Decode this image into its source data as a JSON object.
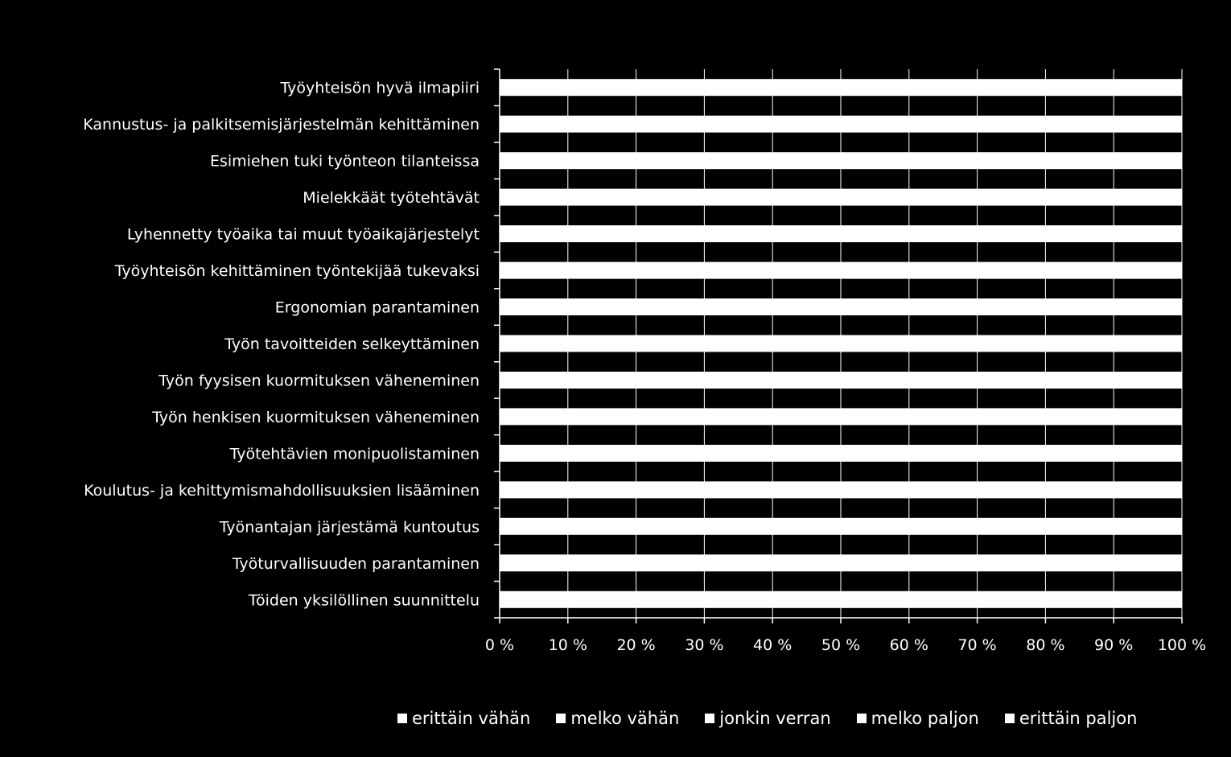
{
  "chart_data": {
    "type": "bar",
    "orientation": "horizontal",
    "stacked": "percent",
    "title": "",
    "xlabel": "",
    "ylabel": "",
    "xlim": [
      0,
      100
    ],
    "x_ticks": [
      "0 %",
      "10 %",
      "20 %",
      "30 %",
      "40 %",
      "50 %",
      "60 %",
      "70 %",
      "80 %",
      "90 %",
      "100 %"
    ],
    "grid": "vertical",
    "legend_position": "bottom",
    "colors": {
      "background": "#000000",
      "bars": "#ffffff",
      "text": "#ffffff",
      "grid": "#ffffff"
    },
    "categories": [
      "Työyhteisön hyvä ilmapiiri",
      "Kannustus- ja palkitsemisjärjestelmän kehittäminen",
      "Esimiehen tuki työnteon tilanteissa",
      "Mielekkäät työtehtävät",
      "Lyhennetty työaika tai muut työaikajärjestelyt",
      "Työyhteisön kehittäminen työntekijää tukevaksi",
      "Ergonomian parantaminen",
      "Työn tavoitteiden selkeyttäminen",
      "Työn fyysisen kuormituksen väheneminen",
      "Työn henkisen kuormituksen väheneminen",
      "Työtehtävien monipuolistaminen",
      "Koulutus- ja kehittymismahdollisuuksien lisääminen",
      "Työnantajan järjestämä kuntoutus",
      "Työturvallisuuden parantaminen",
      "Töiden yksilöllinen suunnittelu"
    ],
    "series": [
      {
        "name": "erittäin vähän"
      },
      {
        "name": "melko vähän"
      },
      {
        "name": "jonkin verran"
      },
      {
        "name": "melko paljon"
      },
      {
        "name": "erittäin paljon"
      }
    ],
    "bar_total_percent": [
      100,
      100,
      100,
      100,
      100,
      100,
      100,
      100,
      100,
      100,
      100,
      100,
      100,
      100,
      100
    ]
  }
}
